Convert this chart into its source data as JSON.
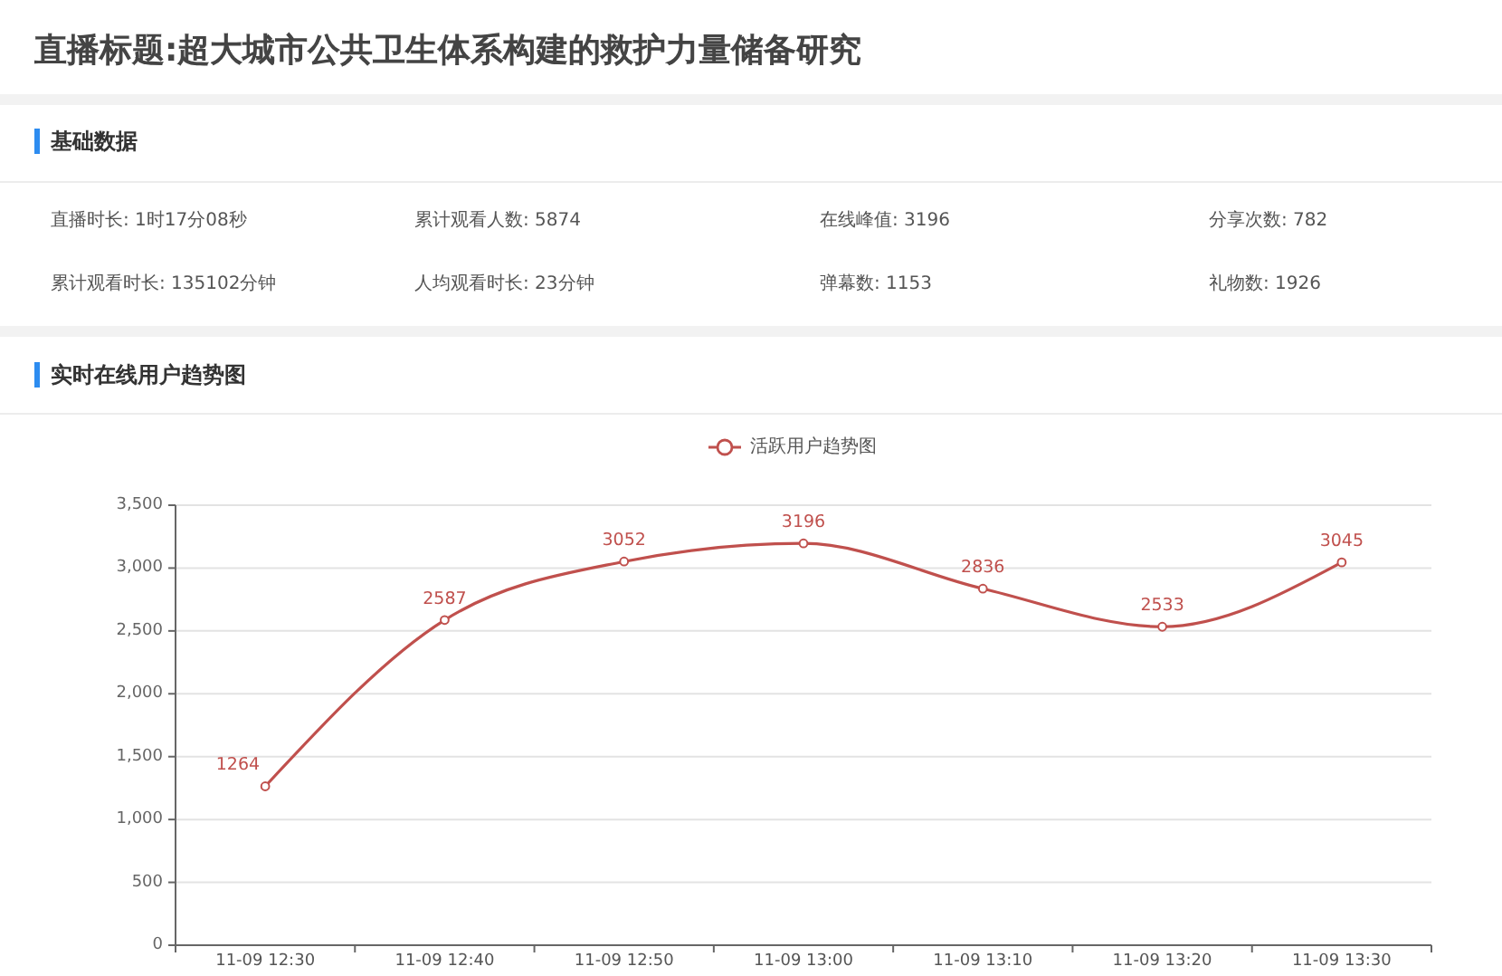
{
  "chart_data": [
    {
      "type": "other",
      "title": "直播标题:超大城市公共卫生体系构建的救护力量储备研究",
      "subtitle": "基础数据",
      "annotations": [
        "直播时长: 1时17分08秒",
        "累计观看人数: 5874",
        "在线峰值: 3196",
        "分享次数: 782",
        "累计观看时长: 135102分钟",
        "人均观看时长: 23分钟",
        "弹幕数: 1153",
        "礼物数: 1926"
      ]
    },
    {
      "type": "line",
      "title": "实时在线用户趋势图",
      "categories": [
        "11-09 12:30",
        "11-09 12:40",
        "11-09 12:50",
        "11-09 13:00",
        "11-09 13:10",
        "11-09 13:20",
        "11-09 13:30"
      ],
      "series": [
        {
          "name": "活跃用户趋势图",
          "color": "#c0504d",
          "values": [
            1264,
            2587,
            3052,
            3196,
            2836,
            2533,
            3045
          ]
        }
      ],
      "ylim": [
        0,
        3500
      ],
      "yticks": [
        0,
        500,
        {
          "value": 1000,
          "label": "1,000"
        },
        {
          "value": 1500,
          "label": "1,500"
        },
        {
          "value": 2000,
          "label": "2,000"
        },
        {
          "value": 2500,
          "label": "2,500"
        },
        {
          "value": 3000,
          "label": "3,000"
        },
        {
          "value": 3500,
          "label": "3,500"
        }
      ],
      "grid": "y",
      "legend": "top",
      "marker": "circle",
      "line_style": "solid",
      "data_labels": true
    }
  ]
}
